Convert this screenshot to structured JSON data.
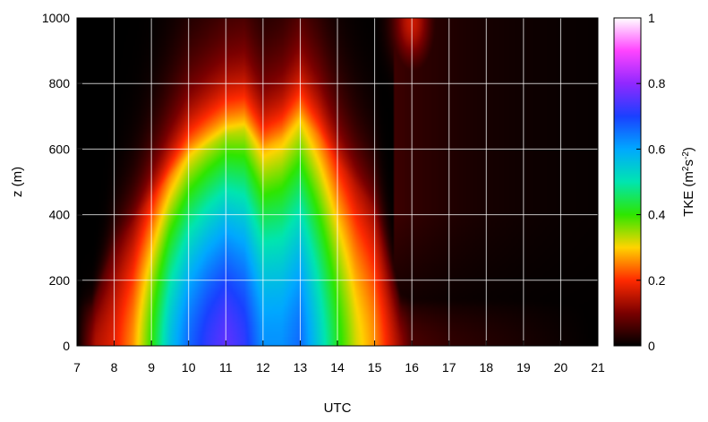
{
  "chart_data": {
    "type": "heatmap",
    "title": "",
    "xlabel": "UTC",
    "ylabel": "z (m)",
    "xlim": [
      7,
      21
    ],
    "ylim": [
      0,
      1000
    ],
    "x_ticks": [
      "7",
      "8",
      "9",
      "10",
      "11",
      "12",
      "13",
      "14",
      "15",
      "16",
      "17",
      "18",
      "19",
      "20",
      "21"
    ],
    "y_ticks": [
      "0",
      "200",
      "400",
      "600",
      "800",
      "1000"
    ],
    "grid": true,
    "colorbar": {
      "label_prefix": "TKE (m",
      "label_sup1": "2",
      "label_mid": "s",
      "label_sup2": "-2",
      "label_suffix": ")",
      "range": [
        0,
        1
      ],
      "ticks": [
        "0",
        "0.2",
        "0.4",
        "0.6",
        "0.8",
        "1"
      ]
    },
    "surface_tke_by_hour": [
      {
        "hour": 7.0,
        "tke": 0.0
      },
      {
        "hour": 7.5,
        "tke": 0.14
      },
      {
        "hour": 8.0,
        "tke": 0.18
      },
      {
        "hour": 8.5,
        "tke": 0.26
      },
      {
        "hour": 9.0,
        "tke": 0.4
      },
      {
        "hour": 9.5,
        "tke": 0.56
      },
      {
        "hour": 10.0,
        "tke": 0.66
      },
      {
        "hour": 10.5,
        "tke": 0.72
      },
      {
        "hour": 11.0,
        "tke": 0.76
      },
      {
        "hour": 11.5,
        "tke": 0.72
      },
      {
        "hour": 12.0,
        "tke": 0.62
      },
      {
        "hour": 12.5,
        "tke": 0.62
      },
      {
        "hour": 13.0,
        "tke": 0.66
      },
      {
        "hour": 13.5,
        "tke": 0.54
      },
      {
        "hour": 14.0,
        "tke": 0.42
      },
      {
        "hour": 14.5,
        "tke": 0.32
      },
      {
        "hour": 15.0,
        "tke": 0.26
      },
      {
        "hour": 15.5,
        "tke": 0.16
      },
      {
        "hour": 16.0,
        "tke": 0.06
      },
      {
        "hour": 17.0,
        "tke": 0.04
      },
      {
        "hour": 21.0,
        "tke": 0.0
      }
    ],
    "boundary_layer_top_m": [
      {
        "hour": 7.0,
        "z": 0
      },
      {
        "hour": 8.0,
        "z": 300
      },
      {
        "hour": 9.0,
        "z": 450
      },
      {
        "hour": 10.0,
        "z": 580
      },
      {
        "hour": 11.0,
        "z": 640
      },
      {
        "hour": 11.5,
        "z": 660
      },
      {
        "hour": 12.0,
        "z": 600
      },
      {
        "hour": 12.5,
        "z": 630
      },
      {
        "hour": 13.0,
        "z": 690
      },
      {
        "hour": 13.5,
        "z": 640
      },
      {
        "hour": 14.0,
        "z": 560
      },
      {
        "hour": 15.0,
        "z": 420
      },
      {
        "hour": 15.5,
        "z": 200
      },
      {
        "hour": 16.0,
        "z": 0
      }
    ],
    "residual_peak": {
      "hour": 16.0,
      "z": 990,
      "tke": 0.16
    }
  }
}
